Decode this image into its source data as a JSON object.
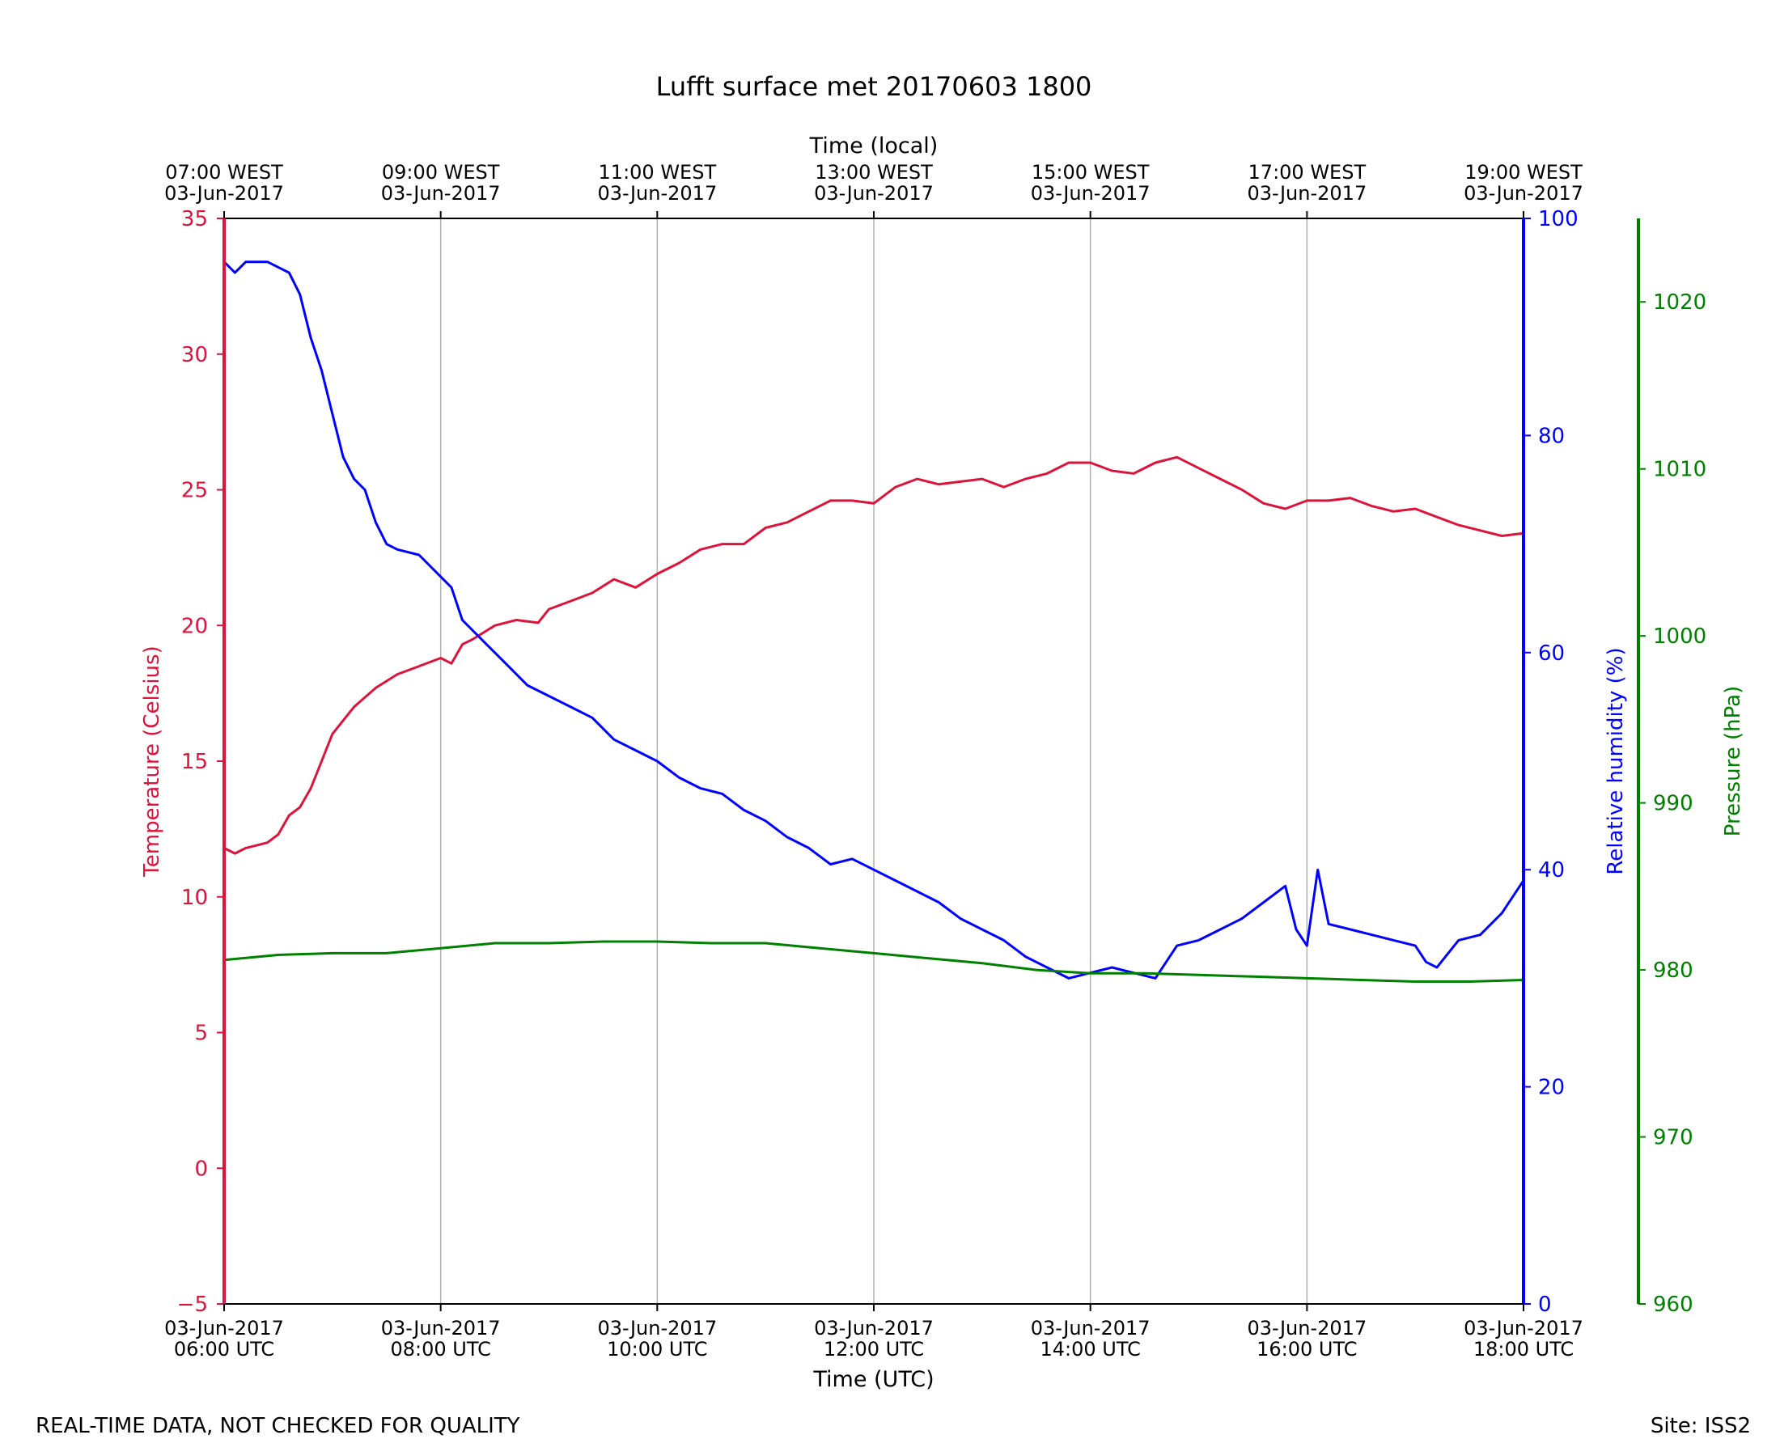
{
  "chart_data": {
    "type": "line",
    "title": "Lufft surface met 20170603 1800",
    "xlabel_bottom": "Time (UTC)",
    "xlabel_top": "Time (local)",
    "x_range_utc_hours": [
      6,
      18
    ],
    "x_ticks_bottom": [
      {
        "hour": 6,
        "date": "03-Jun-2017",
        "time": "06:00 UTC"
      },
      {
        "hour": 8,
        "date": "03-Jun-2017",
        "time": "08:00 UTC"
      },
      {
        "hour": 10,
        "date": "03-Jun-2017",
        "time": "10:00 UTC"
      },
      {
        "hour": 12,
        "date": "03-Jun-2017",
        "time": "12:00 UTC"
      },
      {
        "hour": 14,
        "date": "03-Jun-2017",
        "time": "14:00 UTC"
      },
      {
        "hour": 16,
        "date": "03-Jun-2017",
        "time": "16:00 UTC"
      },
      {
        "hour": 18,
        "date": "03-Jun-2017",
        "time": "18:00 UTC"
      }
    ],
    "x_ticks_top": [
      {
        "hour": 6,
        "time": "07:00 WEST",
        "date": "03-Jun-2017"
      },
      {
        "hour": 8,
        "time": "09:00 WEST",
        "date": "03-Jun-2017"
      },
      {
        "hour": 10,
        "time": "11:00 WEST",
        "date": "03-Jun-2017"
      },
      {
        "hour": 12,
        "time": "13:00 WEST",
        "date": "03-Jun-2017"
      },
      {
        "hour": 14,
        "time": "15:00 WEST",
        "date": "03-Jun-2017"
      },
      {
        "hour": 16,
        "time": "17:00 WEST",
        "date": "03-Jun-2017"
      },
      {
        "hour": 18,
        "time": "19:00 WEST",
        "date": "03-Jun-2017"
      }
    ],
    "axes": [
      {
        "id": "temp",
        "label": "Temperature (Celsius)",
        "color": "#dc143c",
        "range": [
          -5,
          35
        ],
        "ticks": [
          -5,
          0,
          5,
          10,
          15,
          20,
          25,
          30,
          35
        ],
        "tick_labels": [
          "−5",
          "0",
          "5",
          "10",
          "15",
          "20",
          "25",
          "30",
          "35"
        ]
      },
      {
        "id": "rh",
        "label": "Relative humidity (%)",
        "color": "#0000ff",
        "range": [
          0,
          100
        ],
        "ticks": [
          0,
          20,
          40,
          60,
          80,
          100
        ],
        "tick_labels": [
          "0",
          "20",
          "40",
          "60",
          "80",
          "100"
        ]
      },
      {
        "id": "pres",
        "label": "Pressure (hPa)",
        "color": "#008000",
        "range": [
          960,
          1025
        ],
        "ticks": [
          960,
          970,
          980,
          990,
          1000,
          1010,
          1020
        ],
        "tick_labels": [
          "960",
          "970",
          "980",
          "990",
          "1000",
          "1010",
          "1020"
        ]
      }
    ],
    "grid": "vertical",
    "series": [
      {
        "name": "Temperature",
        "axis": "temp",
        "color": "#dc143c",
        "x": [
          6.0,
          6.1,
          6.2,
          6.4,
          6.5,
          6.6,
          6.7,
          6.8,
          6.9,
          7.0,
          7.2,
          7.4,
          7.6,
          7.8,
          8.0,
          8.1,
          8.2,
          8.3,
          8.5,
          8.7,
          8.9,
          9.0,
          9.2,
          9.4,
          9.6,
          9.8,
          10.0,
          10.2,
          10.4,
          10.6,
          10.8,
          11.0,
          11.2,
          11.4,
          11.6,
          11.8,
          12.0,
          12.2,
          12.4,
          12.6,
          12.8,
          13.0,
          13.2,
          13.4,
          13.6,
          13.8,
          14.0,
          14.2,
          14.4,
          14.6,
          14.8,
          15.0,
          15.2,
          15.4,
          15.6,
          15.8,
          16.0,
          16.2,
          16.4,
          16.6,
          16.8,
          17.0,
          17.2,
          17.4,
          17.6,
          17.8,
          18.0
        ],
        "values": [
          11.8,
          11.6,
          11.8,
          12.0,
          12.3,
          13.0,
          13.3,
          14.0,
          15.0,
          16.0,
          17.0,
          17.7,
          18.2,
          18.5,
          18.8,
          18.6,
          19.3,
          19.5,
          20.0,
          20.2,
          20.1,
          20.6,
          20.9,
          21.2,
          21.7,
          21.4,
          21.9,
          22.3,
          22.8,
          23.0,
          23.0,
          23.6,
          23.8,
          24.2,
          24.6,
          24.6,
          24.5,
          25.1,
          25.4,
          25.2,
          25.3,
          25.4,
          25.1,
          25.4,
          25.6,
          26.0,
          26.0,
          25.7,
          25.6,
          26.0,
          26.2,
          25.8,
          25.4,
          25.0,
          24.5,
          24.3,
          24.6,
          24.6,
          24.7,
          24.4,
          24.2,
          24.3,
          24.0,
          23.7,
          23.5,
          23.3,
          23.4
        ]
      },
      {
        "name": "Relative humidity",
        "axis": "rh",
        "color": "#0000ff",
        "x": [
          6.0,
          6.1,
          6.2,
          6.4,
          6.6,
          6.7,
          6.8,
          6.9,
          7.0,
          7.1,
          7.2,
          7.3,
          7.4,
          7.5,
          7.6,
          7.8,
          8.0,
          8.1,
          8.2,
          8.4,
          8.6,
          8.8,
          9.0,
          9.2,
          9.4,
          9.6,
          9.8,
          10.0,
          10.2,
          10.4,
          10.6,
          10.8,
          11.0,
          11.2,
          11.4,
          11.6,
          11.8,
          12.0,
          12.2,
          12.4,
          12.6,
          12.8,
          13.0,
          13.2,
          13.4,
          13.6,
          13.8,
          14.0,
          14.2,
          14.4,
          14.6,
          14.8,
          15.0,
          15.2,
          15.4,
          15.6,
          15.8,
          15.9,
          16.0,
          16.1,
          16.2,
          16.4,
          16.6,
          16.8,
          17.0,
          17.1,
          17.2,
          17.4,
          17.6,
          17.8,
          18.0
        ],
        "values": [
          96.0,
          95.0,
          96.0,
          96.0,
          95.0,
          93.0,
          89.0,
          86.0,
          82.0,
          78.0,
          76.0,
          75.0,
          72.0,
          70.0,
          69.5,
          69.0,
          67.0,
          66.0,
          63.0,
          61.0,
          59.0,
          57.0,
          56.0,
          55.0,
          54.0,
          52.0,
          51.0,
          50.0,
          48.5,
          47.5,
          47.0,
          45.5,
          44.5,
          43.0,
          42.0,
          40.5,
          41.0,
          40.0,
          39.0,
          38.0,
          37.0,
          35.5,
          34.5,
          33.5,
          32.0,
          31.0,
          30.0,
          30.5,
          31.0,
          30.5,
          30.0,
          33.0,
          33.5,
          34.5,
          35.5,
          37.0,
          38.5,
          34.5,
          33.0,
          40.0,
          35.0,
          34.5,
          34.0,
          33.5,
          33.0,
          31.5,
          31.0,
          33.5,
          34.0,
          36.0,
          39.0
        ]
      },
      {
        "name": "Pressure",
        "axis": "pres",
        "color": "#008000",
        "x": [
          6.0,
          6.5,
          7.0,
          7.5,
          8.0,
          8.5,
          9.0,
          9.5,
          10.0,
          10.5,
          11.0,
          11.5,
          12.0,
          12.5,
          13.0,
          13.5,
          14.0,
          14.5,
          15.0,
          15.5,
          16.0,
          16.5,
          17.0,
          17.5,
          18.0
        ],
        "values": [
          980.6,
          980.9,
          981.0,
          981.0,
          981.3,
          981.6,
          981.6,
          981.7,
          981.7,
          981.6,
          981.6,
          981.3,
          981.0,
          980.7,
          980.4,
          980.0,
          979.8,
          979.8,
          979.7,
          979.6,
          979.5,
          979.4,
          979.3,
          979.3,
          979.4
        ]
      }
    ]
  },
  "footer": {
    "left": "REAL-TIME DATA, NOT CHECKED FOR QUALITY",
    "right": "Site: ISS2"
  }
}
